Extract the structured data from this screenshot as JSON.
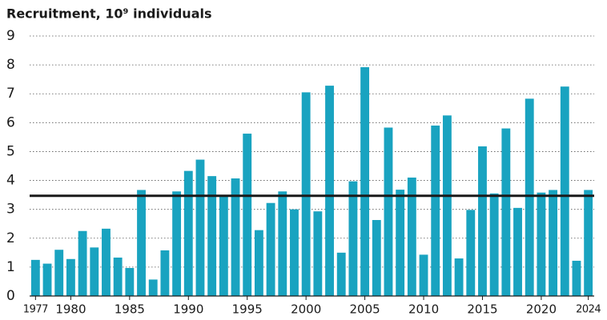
{
  "chart_data": {
    "type": "bar",
    "title": "Recruitment, 10⁹ individuals",
    "categories": [
      "1977",
      null,
      null,
      "1980",
      null,
      null,
      null,
      null,
      "1985",
      null,
      null,
      null,
      null,
      "1990",
      null,
      null,
      null,
      null,
      "1995",
      null,
      null,
      null,
      null,
      "2000",
      null,
      null,
      null,
      null,
      "2005",
      null,
      null,
      null,
      null,
      "2010",
      null,
      null,
      null,
      null,
      "2015",
      null,
      null,
      null,
      null,
      "2020",
      null,
      null,
      null,
      "2024"
    ],
    "values": [
      1.25,
      1.12,
      1.6,
      1.28,
      2.25,
      1.68,
      2.33,
      1.33,
      0.97,
      3.67,
      0.57,
      1.58,
      3.62,
      4.33,
      4.72,
      4.15,
      3.45,
      4.07,
      5.62,
      2.28,
      3.22,
      3.62,
      3.0,
      7.05,
      2.93,
      7.28,
      1.5,
      3.97,
      7.92,
      2.63,
      5.83,
      3.68,
      4.1,
      1.43,
      5.9,
      6.25,
      1.3,
      2.98,
      5.18,
      3.55,
      5.8,
      3.05,
      6.83,
      3.58,
      3.67,
      7.25,
      1.22,
      3.67
    ],
    "color": "#19a3c0",
    "reference_line": 3.47,
    "reference_color": "#1a1a1a",
    "ylim": [
      0,
      9
    ],
    "yticks": [
      0,
      1,
      2,
      3,
      4,
      5,
      6,
      7,
      8,
      9
    ],
    "grid": true
  }
}
